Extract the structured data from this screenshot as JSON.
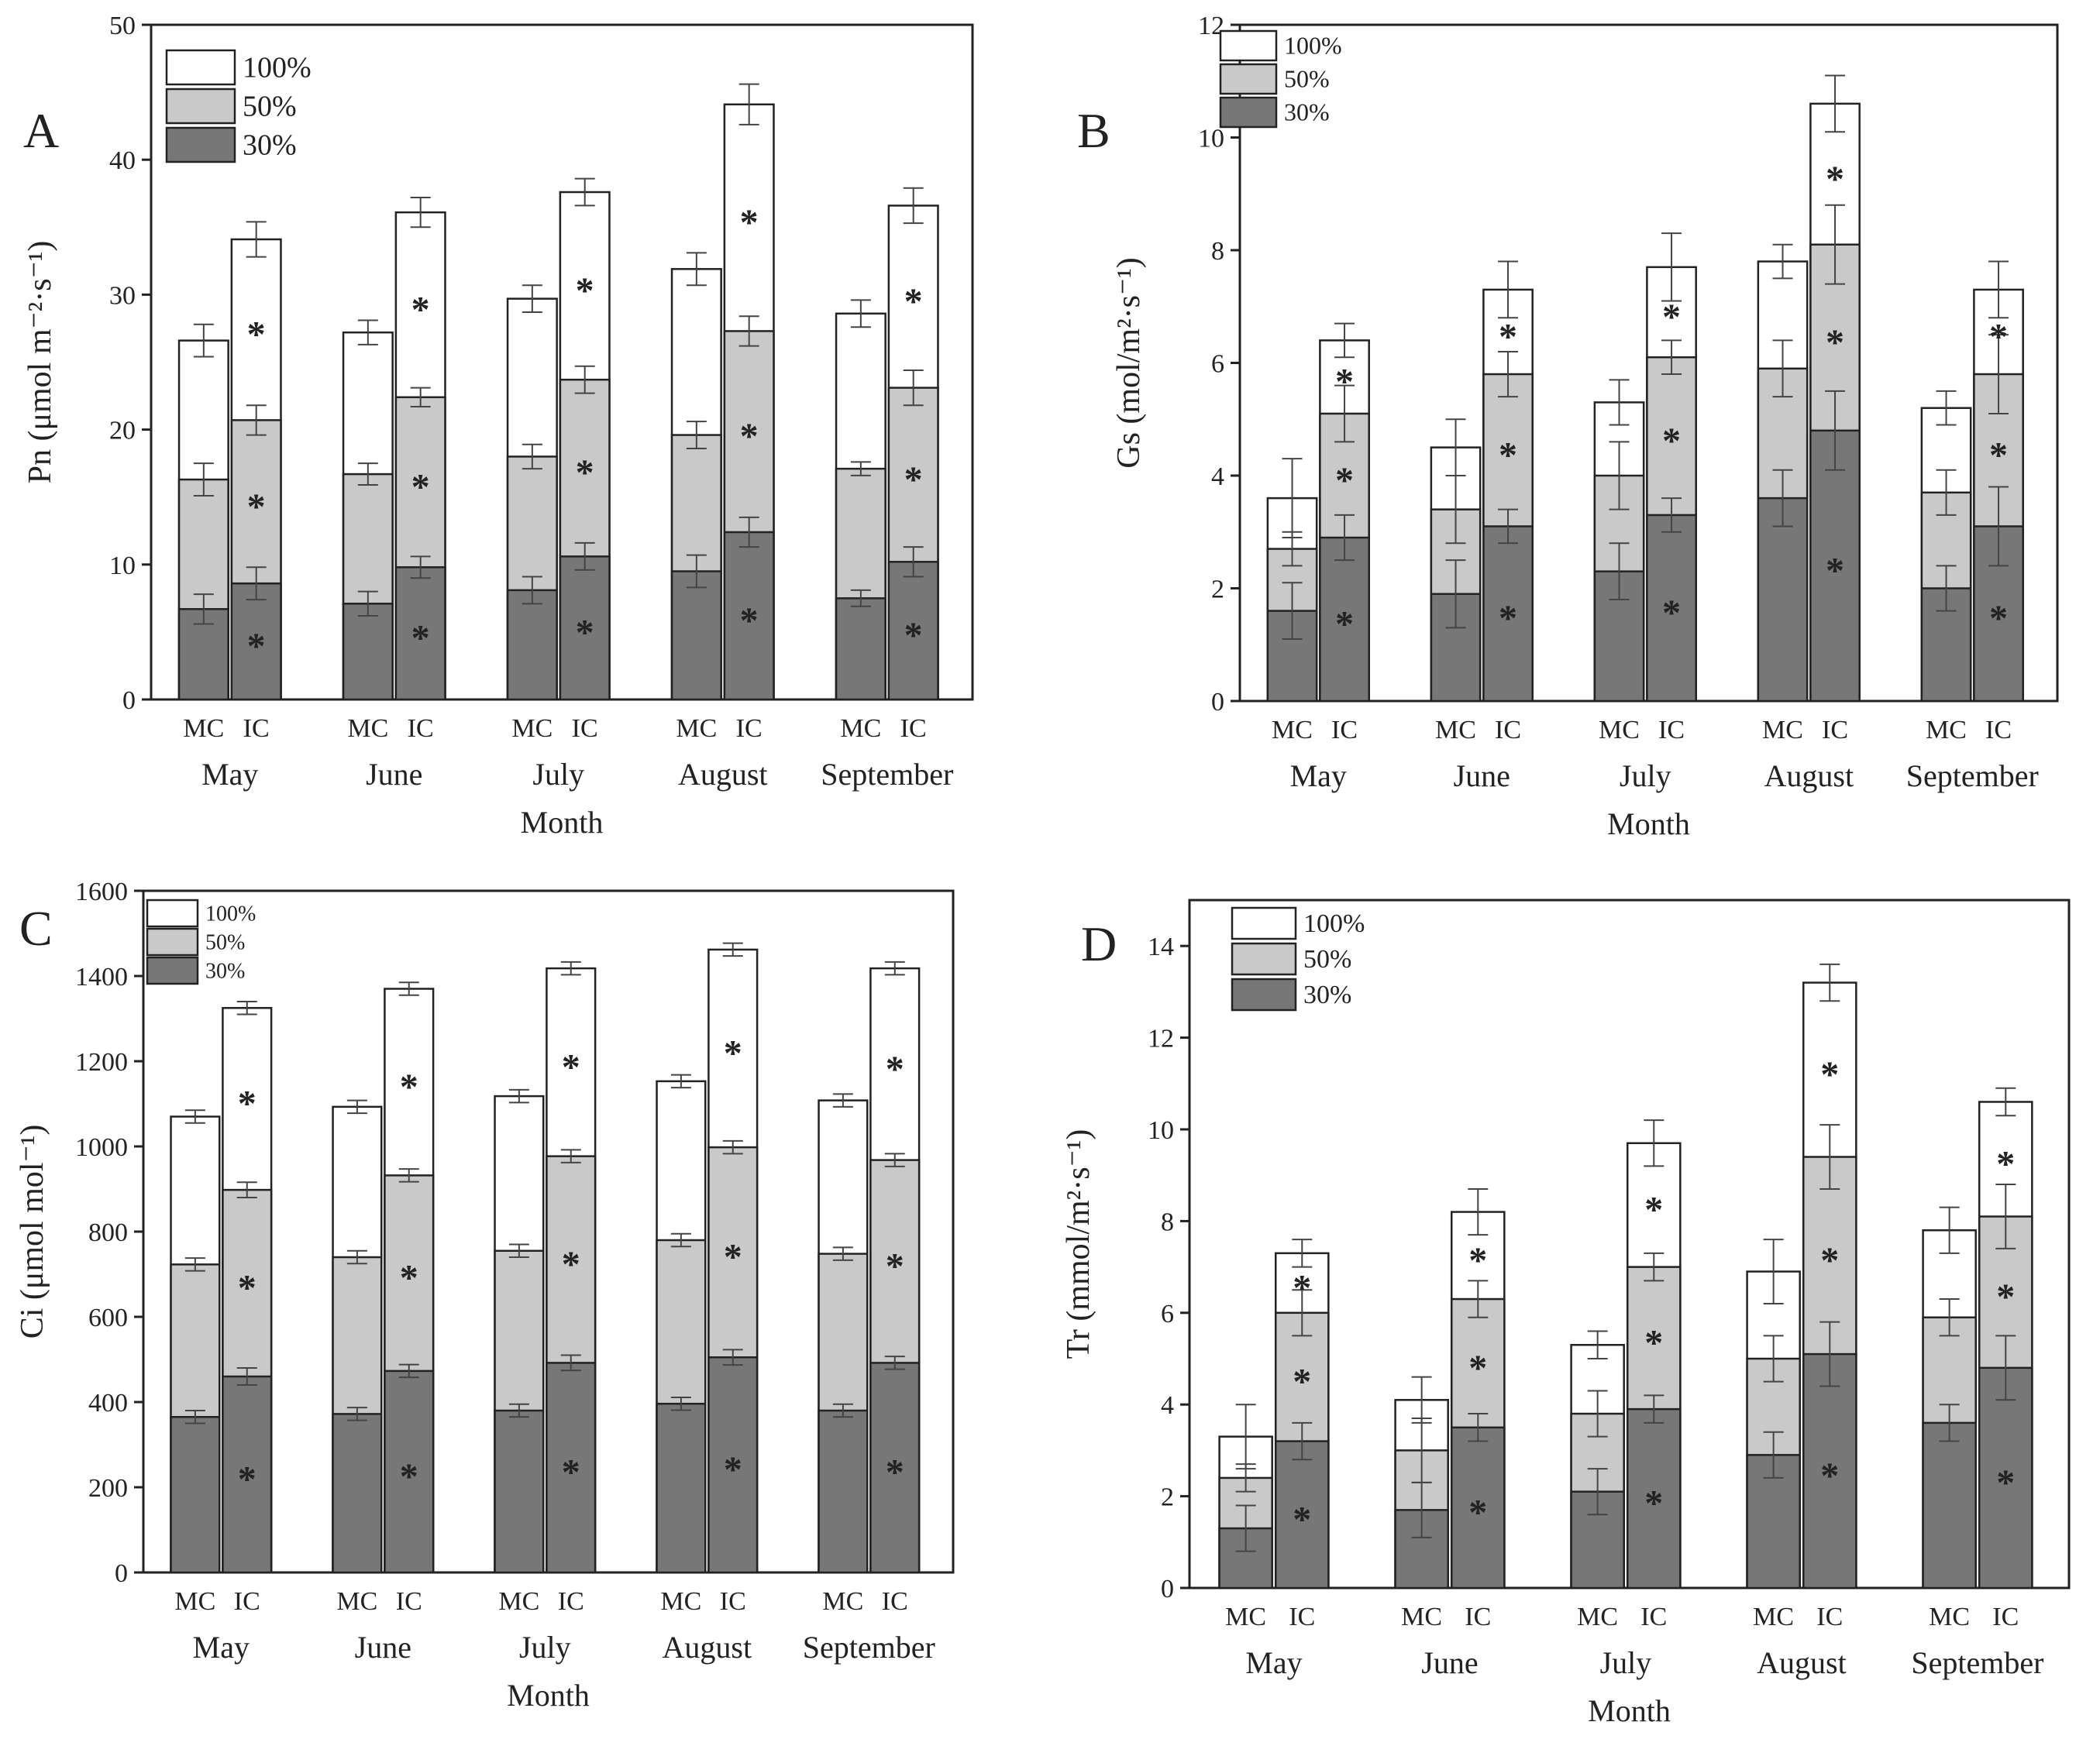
{
  "figure": {
    "months": [
      "May",
      "June",
      "July",
      "August",
      "September"
    ],
    "x_title": "Month",
    "treatments": [
      "MC",
      "IC"
    ],
    "legend": [
      "100%",
      "50%",
      "30%"
    ],
    "colors": {
      "30%": "#777777",
      "50%": "#c9c9c9",
      "100%": "#ffffff",
      "stroke": "#222222"
    },
    "significance_marker": "*"
  },
  "chart_data": [
    {
      "panel": "A",
      "type": "bar",
      "stacked": true,
      "ylabel": "Pn (μmol m⁻²·s⁻¹)",
      "ylim": [
        0,
        50
      ],
      "yticks": [
        0,
        10,
        20,
        30,
        40,
        50
      ],
      "categories": [
        "May",
        "June",
        "July",
        "August",
        "September"
      ],
      "series": [
        {
          "name": "30%",
          "MC": [
            6.7,
            7.1,
            8.1,
            9.5,
            7.5
          ],
          "IC": [
            8.6,
            9.8,
            10.6,
            12.4,
            10.2
          ],
          "MC_err": [
            1.1,
            0.9,
            1.0,
            1.2,
            0.6
          ],
          "IC_err": [
            1.2,
            0.8,
            1.0,
            1.1,
            1.1
          ]
        },
        {
          "name": "50%",
          "MC": [
            16.3,
            16.7,
            18.0,
            19.6,
            17.1
          ],
          "IC": [
            20.7,
            22.4,
            23.7,
            27.3,
            23.1
          ],
          "MC_err": [
            1.2,
            0.8,
            0.9,
            1.0,
            0.5
          ],
          "IC_err": [
            1.1,
            0.7,
            1.0,
            1.1,
            1.3
          ]
        },
        {
          "name": "100%",
          "MC": [
            26.6,
            27.2,
            29.7,
            31.9,
            28.6
          ],
          "IC": [
            34.1,
            36.1,
            37.6,
            44.1,
            36.6
          ],
          "MC_err": [
            1.2,
            0.9,
            1.0,
            1.2,
            1.0
          ],
          "IC_err": [
            1.3,
            1.1,
            1.0,
            1.5,
            1.3
          ]
        }
      ]
    },
    {
      "panel": "B",
      "type": "bar",
      "stacked": true,
      "ylabel": "Gs (mol/m²·s⁻¹)",
      "ylim": [
        0,
        12
      ],
      "yticks": [
        0,
        2,
        4,
        6,
        8,
        10,
        12
      ],
      "categories": [
        "May",
        "June",
        "July",
        "August",
        "September"
      ],
      "series": [
        {
          "name": "30%",
          "MC": [
            1.6,
            1.9,
            2.3,
            3.6,
            2.0
          ],
          "IC": [
            2.9,
            3.1,
            3.3,
            4.8,
            3.1
          ],
          "MC_err": [
            0.5,
            0.6,
            0.5,
            0.5,
            0.4
          ],
          "IC_err": [
            0.4,
            0.3,
            0.3,
            0.7,
            0.7
          ]
        },
        {
          "name": "50%",
          "MC": [
            2.7,
            3.4,
            4.0,
            5.9,
            3.7
          ],
          "IC": [
            5.1,
            5.8,
            6.1,
            8.1,
            5.8
          ],
          "MC_err": [
            0.3,
            0.6,
            0.6,
            0.5,
            0.4
          ],
          "IC_err": [
            0.5,
            0.4,
            0.3,
            0.7,
            0.7
          ]
        },
        {
          "name": "100%",
          "MC": [
            3.6,
            4.5,
            5.3,
            7.8,
            5.2
          ],
          "IC": [
            6.4,
            7.3,
            7.7,
            10.6,
            7.3
          ],
          "MC_err": [
            0.7,
            0.5,
            0.4,
            0.3,
            0.3
          ],
          "IC_err": [
            0.3,
            0.5,
            0.6,
            0.5,
            0.5
          ]
        }
      ]
    },
    {
      "panel": "C",
      "type": "bar",
      "stacked": true,
      "ylabel": "Ci (μmol mol⁻¹)",
      "ylim": [
        0,
        1600
      ],
      "yticks": [
        0,
        200,
        400,
        600,
        800,
        1000,
        1200,
        1400,
        1600
      ],
      "categories": [
        "May",
        "June",
        "July",
        "August",
        "September"
      ],
      "series": [
        {
          "name": "30%",
          "MC": [
            365,
            372,
            380,
            396,
            380
          ],
          "IC": [
            460,
            473,
            492,
            505,
            492
          ],
          "MC_err": [
            15,
            15,
            15,
            15,
            15
          ],
          "IC_err": [
            20,
            15,
            18,
            18,
            15
          ]
        },
        {
          "name": "50%",
          "MC": [
            723,
            740,
            755,
            780,
            748
          ],
          "IC": [
            898,
            932,
            977,
            998,
            968
          ],
          "MC_err": [
            15,
            15,
            15,
            15,
            15
          ],
          "IC_err": [
            18,
            15,
            15,
            15,
            15
          ]
        },
        {
          "name": "100%",
          "MC": [
            1070,
            1093,
            1118,
            1153,
            1108
          ],
          "IC": [
            1325,
            1370,
            1418,
            1462,
            1418
          ],
          "MC_err": [
            15,
            15,
            15,
            15,
            15
          ],
          "IC_err": [
            15,
            15,
            15,
            15,
            15
          ]
        }
      ]
    },
    {
      "panel": "D",
      "type": "bar",
      "stacked": true,
      "ylabel": "Tr (mmol/m²·s⁻¹)",
      "ylim": [
        0,
        15
      ],
      "yticks": [
        0,
        2,
        4,
        6,
        8,
        10,
        12,
        14
      ],
      "categories": [
        "May",
        "June",
        "July",
        "August",
        "September"
      ],
      "series": [
        {
          "name": "30%",
          "MC": [
            1.3,
            1.7,
            2.1,
            2.9,
            3.6
          ],
          "IC": [
            3.2,
            3.5,
            3.9,
            5.1,
            4.8
          ],
          "MC_err": [
            0.5,
            0.6,
            0.5,
            0.5,
            0.4
          ],
          "IC_err": [
            0.4,
            0.3,
            0.3,
            0.7,
            0.7
          ]
        },
        {
          "name": "50%",
          "MC": [
            2.4,
            3.0,
            3.8,
            5.0,
            5.9
          ],
          "IC": [
            6.0,
            6.3,
            7.0,
            9.4,
            8.1
          ],
          "MC_err": [
            0.3,
            0.7,
            0.5,
            0.5,
            0.4
          ],
          "IC_err": [
            0.5,
            0.4,
            0.3,
            0.7,
            0.7
          ]
        },
        {
          "name": "100%",
          "MC": [
            3.3,
            4.1,
            5.3,
            6.9,
            7.8
          ],
          "IC": [
            7.3,
            8.2,
            9.7,
            13.2,
            10.6
          ],
          "MC_err": [
            0.7,
            0.5,
            0.3,
            0.7,
            0.5
          ],
          "IC_err": [
            0.3,
            0.5,
            0.5,
            0.4,
            0.3
          ]
        }
      ]
    }
  ]
}
